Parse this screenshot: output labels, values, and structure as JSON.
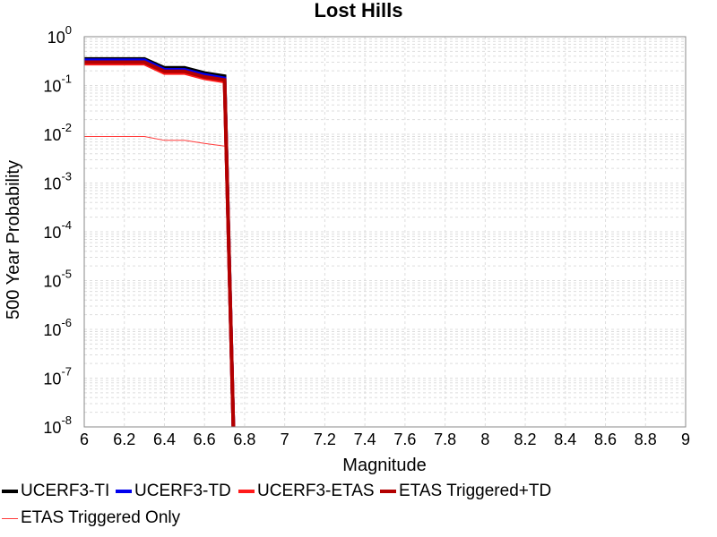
{
  "chart_data": {
    "type": "line",
    "title": "Lost Hills",
    "xlabel": "Magnitude",
    "ylabel": "500 Year Probability",
    "xlim": [
      6,
      9
    ],
    "ylim": [
      1e-08,
      1
    ],
    "yscale": "log",
    "grid": true,
    "legend_position": "bottom",
    "x_ticks": [
      "6",
      "6.2",
      "6.4",
      "6.6",
      "6.8",
      "7",
      "7.2",
      "7.4",
      "7.6",
      "7.8",
      "8",
      "8.2",
      "8.4",
      "8.6",
      "8.8",
      "9"
    ],
    "y_ticks": [
      {
        "base": "10",
        "exp": "0"
      },
      {
        "base": "10",
        "exp": "-1"
      },
      {
        "base": "10",
        "exp": "-2"
      },
      {
        "base": "10",
        "exp": "-3"
      },
      {
        "base": "10",
        "exp": "-4"
      },
      {
        "base": "10",
        "exp": "-5"
      },
      {
        "base": "10",
        "exp": "-6"
      },
      {
        "base": "10",
        "exp": "-7"
      },
      {
        "base": "10",
        "exp": "-8"
      }
    ],
    "series": [
      {
        "name": "UCERF3-TI",
        "color": "#000000",
        "width": 4,
        "x": [
          6.0,
          6.1,
          6.2,
          6.3,
          6.4,
          6.5,
          6.6,
          6.7,
          6.75
        ],
        "y": [
          0.35,
          0.35,
          0.35,
          0.35,
          0.23,
          0.23,
          0.18,
          0.155,
          1e-09
        ]
      },
      {
        "name": "UCERF3-TD",
        "color": "#0000ee",
        "width": 4,
        "x": [
          6.0,
          6.1,
          6.2,
          6.3,
          6.4,
          6.5,
          6.6,
          6.7,
          6.75
        ],
        "y": [
          0.33,
          0.33,
          0.33,
          0.33,
          0.21,
          0.21,
          0.165,
          0.14,
          1e-09
        ]
      },
      {
        "name": "UCERF3-ETAS",
        "color": "#ff1a1a",
        "width": 4,
        "x": [
          6.0,
          6.1,
          6.2,
          6.3,
          6.4,
          6.5,
          6.6,
          6.7,
          6.75
        ],
        "y": [
          0.28,
          0.28,
          0.28,
          0.28,
          0.18,
          0.18,
          0.14,
          0.12,
          1e-09
        ]
      },
      {
        "name": "ETAS Triggered+TD",
        "color": "#b30000",
        "width": 4,
        "x": [
          6.0,
          6.1,
          6.2,
          6.3,
          6.4,
          6.5,
          6.6,
          6.7,
          6.75
        ],
        "y": [
          0.3,
          0.3,
          0.3,
          0.3,
          0.195,
          0.195,
          0.15,
          0.13,
          1e-09
        ]
      },
      {
        "name": "ETAS Triggered Only",
        "color": "#ff3b3b",
        "width": 1,
        "x": [
          6.0,
          6.1,
          6.2,
          6.3,
          6.4,
          6.5,
          6.6,
          6.7
        ],
        "y": [
          0.009,
          0.009,
          0.009,
          0.009,
          0.0075,
          0.0075,
          0.0065,
          0.0057
        ]
      }
    ]
  }
}
